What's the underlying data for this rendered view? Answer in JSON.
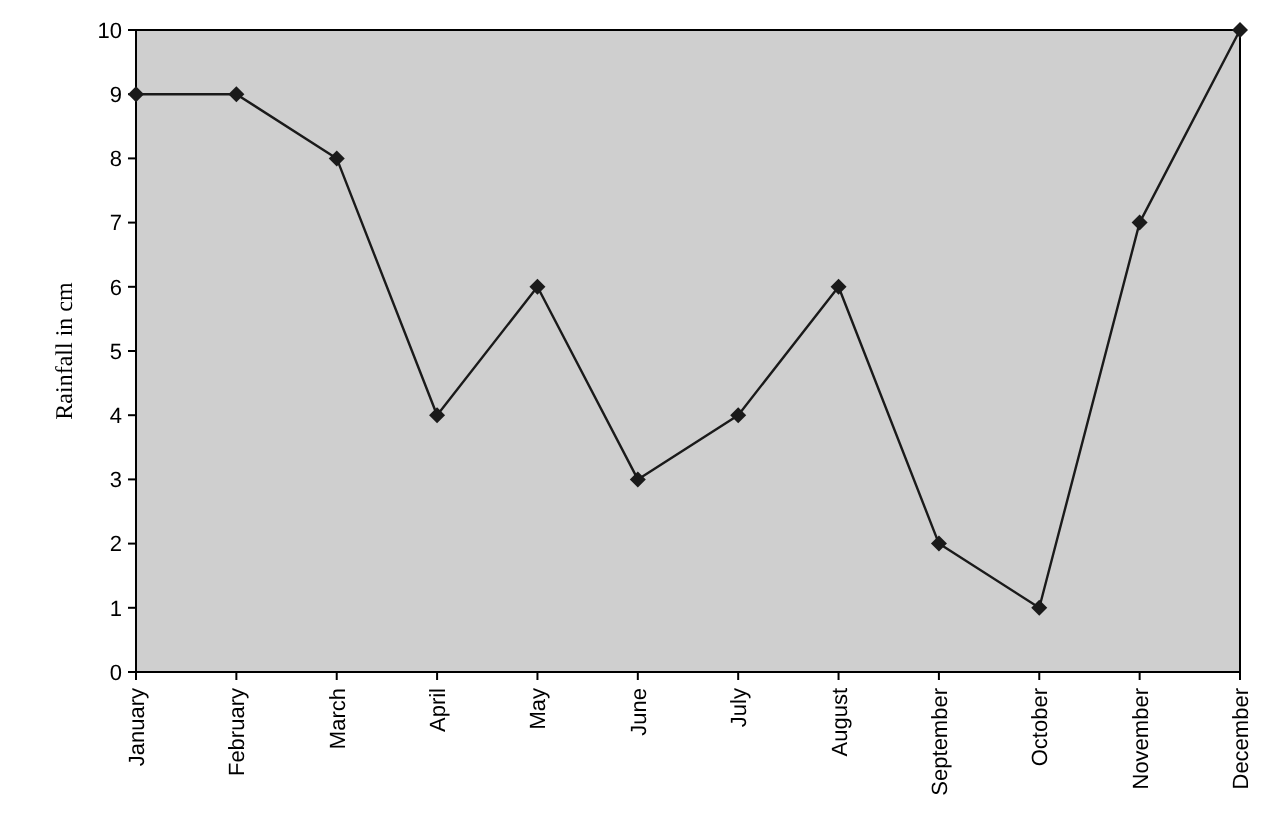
{
  "chart_data": {
    "type": "line",
    "ylabel": "Rainfall in cm",
    "categories": [
      "January",
      "February",
      "March",
      "April",
      "May",
      "June",
      "July",
      "August",
      "September",
      "October",
      "November",
      "December"
    ],
    "series": [
      {
        "color": "#1a1a1a",
        "values": [
          9,
          9,
          8,
          4,
          6,
          3,
          4,
          6,
          2,
          1,
          7,
          10
        ]
      }
    ],
    "ylim": [
      0,
      10
    ],
    "yticks": [
      0,
      1,
      2,
      3,
      4,
      5,
      6,
      7,
      8,
      9,
      10
    ],
    "grid": false,
    "marker": "diamond",
    "line_style": "solid"
  }
}
